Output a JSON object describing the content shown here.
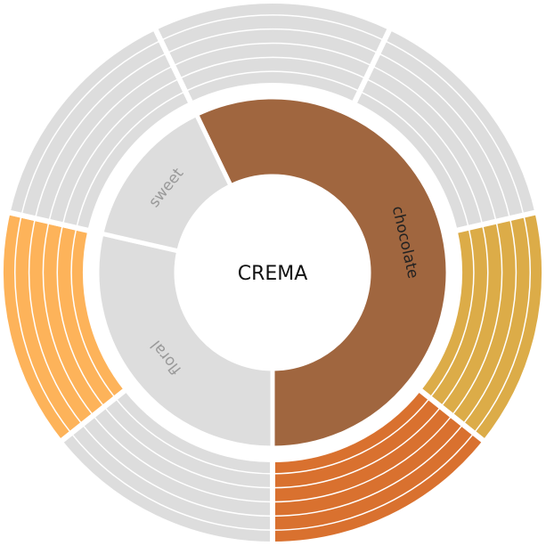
{
  "chart_data": {
    "type": "sunburst",
    "title": "CREMA",
    "nodes": [
      {
        "name": "chocolate",
        "color": "#a0663f",
        "label_color": "#222222",
        "children": [
          {
            "value": 1,
            "color": "#dddddd"
          },
          {
            "value": 1,
            "color": "#dddddd"
          },
          {
            "value": 1,
            "color": "#dcac48"
          },
          {
            "value": 1,
            "color": "#d9712f"
          }
        ]
      },
      {
        "name": "floral",
        "color": "#dddddd",
        "label_color": "#999999",
        "children": [
          {
            "value": 1,
            "color": "#dddddd"
          },
          {
            "value": 1,
            "color": "#fdb35a"
          }
        ]
      },
      {
        "name": "sweet",
        "color": "#dddddd",
        "label_color": "#999999",
        "children": [
          {
            "value": 1,
            "color": "#dddddd"
          }
        ]
      }
    ]
  }
}
